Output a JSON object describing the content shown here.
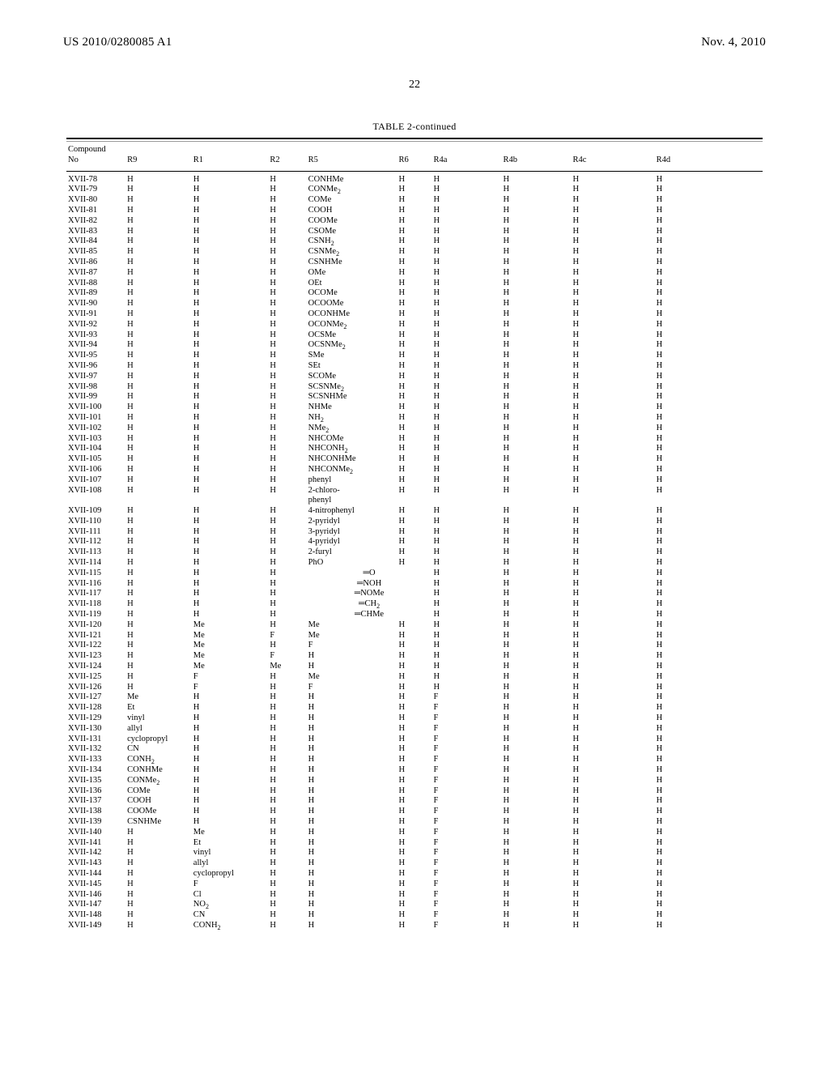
{
  "header": {
    "pub_number": "US 2010/0280085 A1",
    "pub_date": "Nov. 4, 2010",
    "page_number": "22"
  },
  "table": {
    "title": "TABLE 2-continued",
    "columns": [
      {
        "label": "Compound",
        "sub": "No"
      },
      {
        "label": "R9"
      },
      {
        "label": "R1"
      },
      {
        "label": "R2"
      },
      {
        "label": "R5"
      },
      {
        "label": "R6"
      },
      {
        "label": "R4a"
      },
      {
        "label": "R4b"
      },
      {
        "label": "R4c"
      },
      {
        "label": "R4d"
      }
    ],
    "rows": [
      {
        "no": "XVII-78",
        "r9": "H",
        "r1": "H",
        "r2": "H",
        "r5": "CONHMe",
        "r6": "H",
        "r4a": "H",
        "r4b": "H",
        "r4c": "H",
        "r4d": "H"
      },
      {
        "no": "XVII-79",
        "r9": "H",
        "r1": "H",
        "r2": "H",
        "r5": "CONMe<sub>2</sub>",
        "r6": "H",
        "r4a": "H",
        "r4b": "H",
        "r4c": "H",
        "r4d": "H"
      },
      {
        "no": "XVII-80",
        "r9": "H",
        "r1": "H",
        "r2": "H",
        "r5": "COMe",
        "r6": "H",
        "r4a": "H",
        "r4b": "H",
        "r4c": "H",
        "r4d": "H"
      },
      {
        "no": "XVII-81",
        "r9": "H",
        "r1": "H",
        "r2": "H",
        "r5": "COOH",
        "r6": "H",
        "r4a": "H",
        "r4b": "H",
        "r4c": "H",
        "r4d": "H"
      },
      {
        "no": "XVII-82",
        "r9": "H",
        "r1": "H",
        "r2": "H",
        "r5": "COOMe",
        "r6": "H",
        "r4a": "H",
        "r4b": "H",
        "r4c": "H",
        "r4d": "H"
      },
      {
        "no": "XVII-83",
        "r9": "H",
        "r1": "H",
        "r2": "H",
        "r5": "CSOMe",
        "r6": "H",
        "r4a": "H",
        "r4b": "H",
        "r4c": "H",
        "r4d": "H"
      },
      {
        "no": "XVII-84",
        "r9": "H",
        "r1": "H",
        "r2": "H",
        "r5": "CSNH<sub>2</sub>",
        "r6": "H",
        "r4a": "H",
        "r4b": "H",
        "r4c": "H",
        "r4d": "H"
      },
      {
        "no": "XVII-85",
        "r9": "H",
        "r1": "H",
        "r2": "H",
        "r5": "CSNMe<sub>2</sub>",
        "r6": "H",
        "r4a": "H",
        "r4b": "H",
        "r4c": "H",
        "r4d": "H"
      },
      {
        "no": "XVII-86",
        "r9": "H",
        "r1": "H",
        "r2": "H",
        "r5": "CSNHMe",
        "r6": "H",
        "r4a": "H",
        "r4b": "H",
        "r4c": "H",
        "r4d": "H"
      },
      {
        "no": "XVII-87",
        "r9": "H",
        "r1": "H",
        "r2": "H",
        "r5": "OMe",
        "r6": "H",
        "r4a": "H",
        "r4b": "H",
        "r4c": "H",
        "r4d": "H"
      },
      {
        "no": "XVII-88",
        "r9": "H",
        "r1": "H",
        "r2": "H",
        "r5": "OEt",
        "r6": "H",
        "r4a": "H",
        "r4b": "H",
        "r4c": "H",
        "r4d": "H"
      },
      {
        "no": "XVII-89",
        "r9": "H",
        "r1": "H",
        "r2": "H",
        "r5": "OCOMe",
        "r6": "H",
        "r4a": "H",
        "r4b": "H",
        "r4c": "H",
        "r4d": "H"
      },
      {
        "no": "XVII-90",
        "r9": "H",
        "r1": "H",
        "r2": "H",
        "r5": "OCOOMe",
        "r6": "H",
        "r4a": "H",
        "r4b": "H",
        "r4c": "H",
        "r4d": "H"
      },
      {
        "no": "XVII-91",
        "r9": "H",
        "r1": "H",
        "r2": "H",
        "r5": "OCONHMe",
        "r6": "H",
        "r4a": "H",
        "r4b": "H",
        "r4c": "H",
        "r4d": "H"
      },
      {
        "no": "XVII-92",
        "r9": "H",
        "r1": "H",
        "r2": "H",
        "r5": "OCONMe<sub>2</sub>",
        "r6": "H",
        "r4a": "H",
        "r4b": "H",
        "r4c": "H",
        "r4d": "H"
      },
      {
        "no": "XVII-93",
        "r9": "H",
        "r1": "H",
        "r2": "H",
        "r5": "OCSMe",
        "r6": "H",
        "r4a": "H",
        "r4b": "H",
        "r4c": "H",
        "r4d": "H"
      },
      {
        "no": "XVII-94",
        "r9": "H",
        "r1": "H",
        "r2": "H",
        "r5": "OCSNMe<sub>2</sub>",
        "r6": "H",
        "r4a": "H",
        "r4b": "H",
        "r4c": "H",
        "r4d": "H"
      },
      {
        "no": "XVII-95",
        "r9": "H",
        "r1": "H",
        "r2": "H",
        "r5": "SMe",
        "r6": "H",
        "r4a": "H",
        "r4b": "H",
        "r4c": "H",
        "r4d": "H"
      },
      {
        "no": "XVII-96",
        "r9": "H",
        "r1": "H",
        "r2": "H",
        "r5": "SEt",
        "r6": "H",
        "r4a": "H",
        "r4b": "H",
        "r4c": "H",
        "r4d": "H"
      },
      {
        "no": "XVII-97",
        "r9": "H",
        "r1": "H",
        "r2": "H",
        "r5": "SCOMe",
        "r6": "H",
        "r4a": "H",
        "r4b": "H",
        "r4c": "H",
        "r4d": "H"
      },
      {
        "no": "XVII-98",
        "r9": "H",
        "r1": "H",
        "r2": "H",
        "r5": "SCSNMe<sub>2</sub>",
        "r6": "H",
        "r4a": "H",
        "r4b": "H",
        "r4c": "H",
        "r4d": "H"
      },
      {
        "no": "XVII-99",
        "r9": "H",
        "r1": "H",
        "r2": "H",
        "r5": "SCSNHMe",
        "r6": "H",
        "r4a": "H",
        "r4b": "H",
        "r4c": "H",
        "r4d": "H"
      },
      {
        "no": "XVII-100",
        "r9": "H",
        "r1": "H",
        "r2": "H",
        "r5": "NHMe",
        "r6": "H",
        "r4a": "H",
        "r4b": "H",
        "r4c": "H",
        "r4d": "H"
      },
      {
        "no": "XVII-101",
        "r9": "H",
        "r1": "H",
        "r2": "H",
        "r5": "NH<sub>2</sub>",
        "r6": "H",
        "r4a": "H",
        "r4b": "H",
        "r4c": "H",
        "r4d": "H"
      },
      {
        "no": "XVII-102",
        "r9": "H",
        "r1": "H",
        "r2": "H",
        "r5": "NMe<sub>2</sub>",
        "r6": "H",
        "r4a": "H",
        "r4b": "H",
        "r4c": "H",
        "r4d": "H"
      },
      {
        "no": "XVII-103",
        "r9": "H",
        "r1": "H",
        "r2": "H",
        "r5": "NHCOMe",
        "r6": "H",
        "r4a": "H",
        "r4b": "H",
        "r4c": "H",
        "r4d": "H"
      },
      {
        "no": "XVII-104",
        "r9": "H",
        "r1": "H",
        "r2": "H",
        "r5": "NHCONH<sub>2</sub>",
        "r6": "H",
        "r4a": "H",
        "r4b": "H",
        "r4c": "H",
        "r4d": "H"
      },
      {
        "no": "XVII-105",
        "r9": "H",
        "r1": "H",
        "r2": "H",
        "r5": "NHCONHMe",
        "r6": "H",
        "r4a": "H",
        "r4b": "H",
        "r4c": "H",
        "r4d": "H"
      },
      {
        "no": "XVII-106",
        "r9": "H",
        "r1": "H",
        "r2": "H",
        "r5": "NHCONMe<sub>2</sub>",
        "r6": "H",
        "r4a": "H",
        "r4b": "H",
        "r4c": "H",
        "r4d": "H"
      },
      {
        "no": "XVII-107",
        "r9": "H",
        "r1": "H",
        "r2": "H",
        "r5": "phenyl",
        "r6": "H",
        "r4a": "H",
        "r4b": "H",
        "r4c": "H",
        "r4d": "H"
      },
      {
        "no": "XVII-108",
        "r9": "H",
        "r1": "H",
        "r2": "H",
        "r5": "2-chloro-<br>phenyl",
        "r6": "H",
        "r4a": "H",
        "r4b": "H",
        "r4c": "H",
        "r4d": "H"
      },
      {
        "no": "XVII-109",
        "r9": "H",
        "r1": "H",
        "r2": "H",
        "r5": "4-nitrophenyl",
        "r6": "H",
        "r4a": "H",
        "r4b": "H",
        "r4c": "H",
        "r4d": "H"
      },
      {
        "no": "XVII-110",
        "r9": "H",
        "r1": "H",
        "r2": "H",
        "r5": "2-pyridyl",
        "r6": "H",
        "r4a": "H",
        "r4b": "H",
        "r4c": "H",
        "r4d": "H"
      },
      {
        "no": "XVII-111",
        "r9": "H",
        "r1": "H",
        "r2": "H",
        "r5": "3-pyridyl",
        "r6": "H",
        "r4a": "H",
        "r4b": "H",
        "r4c": "H",
        "r4d": "H"
      },
      {
        "no": "XVII-112",
        "r9": "H",
        "r1": "H",
        "r2": "H",
        "r5": "4-pyridyl",
        "r6": "H",
        "r4a": "H",
        "r4b": "H",
        "r4c": "H",
        "r4d": "H"
      },
      {
        "no": "XVII-113",
        "r9": "H",
        "r1": "H",
        "r2": "H",
        "r5": "2-furyl",
        "r6": "H",
        "r4a": "H",
        "r4b": "H",
        "r4c": "H",
        "r4d": "H"
      },
      {
        "no": "XVII-114",
        "r9": "H",
        "r1": "H",
        "r2": "H",
        "r5": "PhO",
        "r6": "H",
        "r4a": "H",
        "r4b": "H",
        "r4c": "H",
        "r4d": "H"
      },
      {
        "no": "XVII-115",
        "r9": "H",
        "r1": "H",
        "r2": "H",
        "r5r6": "═O",
        "r4a": "H",
        "r4b": "H",
        "r4c": "H",
        "r4d": "H"
      },
      {
        "no": "XVII-116",
        "r9": "H",
        "r1": "H",
        "r2": "H",
        "r5r6": "═NOH",
        "r4a": "H",
        "r4b": "H",
        "r4c": "H",
        "r4d": "H"
      },
      {
        "no": "XVII-117",
        "r9": "H",
        "r1": "H",
        "r2": "H",
        "r5r6": "═NOMe",
        "r4a": "H",
        "r4b": "H",
        "r4c": "H",
        "r4d": "H"
      },
      {
        "no": "XVII-118",
        "r9": "H",
        "r1": "H",
        "r2": "H",
        "r5r6": "═CH<sub>2</sub>",
        "r4a": "H",
        "r4b": "H",
        "r4c": "H",
        "r4d": "H"
      },
      {
        "no": "XVII-119",
        "r9": "H",
        "r1": "H",
        "r2": "H",
        "r5r6": "═CHMe",
        "r4a": "H",
        "r4b": "H",
        "r4c": "H",
        "r4d": "H"
      },
      {
        "no": "XVII-120",
        "r9": "H",
        "r1": "Me",
        "r2": "H",
        "r5": "Me",
        "r6": "H",
        "r4a": "H",
        "r4b": "H",
        "r4c": "H",
        "r4d": "H"
      },
      {
        "no": "XVII-121",
        "r9": "H",
        "r1": "Me",
        "r2": "F",
        "r5": "Me",
        "r6": "H",
        "r4a": "H",
        "r4b": "H",
        "r4c": "H",
        "r4d": "H"
      },
      {
        "no": "XVII-122",
        "r9": "H",
        "r1": "Me",
        "r2": "H",
        "r5": "F",
        "r6": "H",
        "r4a": "H",
        "r4b": "H",
        "r4c": "H",
        "r4d": "H"
      },
      {
        "no": "XVII-123",
        "r9": "H",
        "r1": "Me",
        "r2": "F",
        "r5": "H",
        "r6": "H",
        "r4a": "H",
        "r4b": "H",
        "r4c": "H",
        "r4d": "H"
      },
      {
        "no": "XVII-124",
        "r9": "H",
        "r1": "Me",
        "r2": "Me",
        "r5": "H",
        "r6": "H",
        "r4a": "H",
        "r4b": "H",
        "r4c": "H",
        "r4d": "H"
      },
      {
        "no": "XVII-125",
        "r9": "H",
        "r1": "F",
        "r2": "H",
        "r5": "Me",
        "r6": "H",
        "r4a": "H",
        "r4b": "H",
        "r4c": "H",
        "r4d": "H"
      },
      {
        "no": "XVII-126",
        "r9": "H",
        "r1": "F",
        "r2": "H",
        "r5": "F",
        "r6": "H",
        "r4a": "H",
        "r4b": "H",
        "r4c": "H",
        "r4d": "H"
      },
      {
        "no": "XVII-127",
        "r9": "Me",
        "r1": "H",
        "r2": "H",
        "r5": "H",
        "r6": "H",
        "r4a": "F",
        "r4b": "H",
        "r4c": "H",
        "r4d": "H"
      },
      {
        "no": "XVII-128",
        "r9": "Et",
        "r1": "H",
        "r2": "H",
        "r5": "H",
        "r6": "H",
        "r4a": "F",
        "r4b": "H",
        "r4c": "H",
        "r4d": "H"
      },
      {
        "no": "XVII-129",
        "r9": "vinyl",
        "r1": "H",
        "r2": "H",
        "r5": "H",
        "r6": "H",
        "r4a": "F",
        "r4b": "H",
        "r4c": "H",
        "r4d": "H"
      },
      {
        "no": "XVII-130",
        "r9": "allyl",
        "r1": "H",
        "r2": "H",
        "r5": "H",
        "r6": "H",
        "r4a": "F",
        "r4b": "H",
        "r4c": "H",
        "r4d": "H"
      },
      {
        "no": "XVII-131",
        "r9": "cyclopropyl",
        "r1": "H",
        "r2": "H",
        "r5": "H",
        "r6": "H",
        "r4a": "F",
        "r4b": "H",
        "r4c": "H",
        "r4d": "H"
      },
      {
        "no": "XVII-132",
        "r9": "CN",
        "r1": "H",
        "r2": "H",
        "r5": "H",
        "r6": "H",
        "r4a": "F",
        "r4b": "H",
        "r4c": "H",
        "r4d": "H"
      },
      {
        "no": "XVII-133",
        "r9": "CONH<sub>2</sub>",
        "r1": "H",
        "r2": "H",
        "r5": "H",
        "r6": "H",
        "r4a": "F",
        "r4b": "H",
        "r4c": "H",
        "r4d": "H"
      },
      {
        "no": "XVII-134",
        "r9": "CONHMe",
        "r1": "H",
        "r2": "H",
        "r5": "H",
        "r6": "H",
        "r4a": "F",
        "r4b": "H",
        "r4c": "H",
        "r4d": "H"
      },
      {
        "no": "XVII-135",
        "r9": "CONMe<sub>2</sub>",
        "r1": "H",
        "r2": "H",
        "r5": "H",
        "r6": "H",
        "r4a": "F",
        "r4b": "H",
        "r4c": "H",
        "r4d": "H"
      },
      {
        "no": "XVII-136",
        "r9": "COMe",
        "r1": "H",
        "r2": "H",
        "r5": "H",
        "r6": "H",
        "r4a": "F",
        "r4b": "H",
        "r4c": "H",
        "r4d": "H"
      },
      {
        "no": "XVII-137",
        "r9": "COOH",
        "r1": "H",
        "r2": "H",
        "r5": "H",
        "r6": "H",
        "r4a": "F",
        "r4b": "H",
        "r4c": "H",
        "r4d": "H"
      },
      {
        "no": "XVII-138",
        "r9": "COOMe",
        "r1": "H",
        "r2": "H",
        "r5": "H",
        "r6": "H",
        "r4a": "F",
        "r4b": "H",
        "r4c": "H",
        "r4d": "H"
      },
      {
        "no": "XVII-139",
        "r9": "CSNHMe",
        "r1": "H",
        "r2": "H",
        "r5": "H",
        "r6": "H",
        "r4a": "F",
        "r4b": "H",
        "r4c": "H",
        "r4d": "H"
      },
      {
        "no": "XVII-140",
        "r9": "H",
        "r1": "Me",
        "r2": "H",
        "r5": "H",
        "r6": "H",
        "r4a": "F",
        "r4b": "H",
        "r4c": "H",
        "r4d": "H"
      },
      {
        "no": "XVII-141",
        "r9": "H",
        "r1": "Et",
        "r2": "H",
        "r5": "H",
        "r6": "H",
        "r4a": "F",
        "r4b": "H",
        "r4c": "H",
        "r4d": "H"
      },
      {
        "no": "XVII-142",
        "r9": "H",
        "r1": "vinyl",
        "r2": "H",
        "r5": "H",
        "r6": "H",
        "r4a": "F",
        "r4b": "H",
        "r4c": "H",
        "r4d": "H"
      },
      {
        "no": "XVII-143",
        "r9": "H",
        "r1": "allyl",
        "r2": "H",
        "r5": "H",
        "r6": "H",
        "r4a": "F",
        "r4b": "H",
        "r4c": "H",
        "r4d": "H"
      },
      {
        "no": "XVII-144",
        "r9": "H",
        "r1": "cyclopropyl",
        "r2": "H",
        "r5": "H",
        "r6": "H",
        "r4a": "F",
        "r4b": "H",
        "r4c": "H",
        "r4d": "H"
      },
      {
        "no": "XVII-145",
        "r9": "H",
        "r1": "F",
        "r2": "H",
        "r5": "H",
        "r6": "H",
        "r4a": "F",
        "r4b": "H",
        "r4c": "H",
        "r4d": "H"
      },
      {
        "no": "XVII-146",
        "r9": "H",
        "r1": "Cl",
        "r2": "H",
        "r5": "H",
        "r6": "H",
        "r4a": "F",
        "r4b": "H",
        "r4c": "H",
        "r4d": "H"
      },
      {
        "no": "XVII-147",
        "r9": "H",
        "r1": "NO<sub>2</sub>",
        "r2": "H",
        "r5": "H",
        "r6": "H",
        "r4a": "F",
        "r4b": "H",
        "r4c": "H",
        "r4d": "H"
      },
      {
        "no": "XVII-148",
        "r9": "H",
        "r1": "CN",
        "r2": "H",
        "r5": "H",
        "r6": "H",
        "r4a": "F",
        "r4b": "H",
        "r4c": "H",
        "r4d": "H"
      },
      {
        "no": "XVII-149",
        "r9": "H",
        "r1": "CONH<sub>2</sub>",
        "r2": "H",
        "r5": "H",
        "r6": "H",
        "r4a": "F",
        "r4b": "H",
        "r4c": "H",
        "r4d": "H"
      }
    ]
  }
}
